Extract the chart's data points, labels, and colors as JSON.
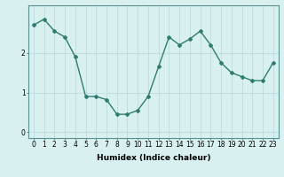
{
  "x": [
    0,
    1,
    2,
    3,
    4,
    5,
    6,
    7,
    8,
    9,
    10,
    11,
    12,
    13,
    14,
    15,
    16,
    17,
    18,
    19,
    20,
    21,
    22,
    23
  ],
  "y": [
    2.7,
    2.85,
    2.55,
    2.4,
    1.9,
    0.9,
    0.9,
    0.82,
    0.45,
    0.45,
    0.55,
    0.9,
    1.65,
    2.4,
    2.2,
    2.35,
    2.55,
    2.2,
    1.75,
    1.5,
    1.4,
    1.3,
    1.3,
    1.75
  ],
  "xlabel": "Humidex (Indice chaleur)",
  "ylabel": "",
  "xlim": [
    -0.5,
    23.5
  ],
  "ylim": [
    -0.15,
    3.2
  ],
  "yticks": [
    0,
    1,
    2
  ],
  "xticks": [
    0,
    1,
    2,
    3,
    4,
    5,
    6,
    7,
    8,
    9,
    10,
    11,
    12,
    13,
    14,
    15,
    16,
    17,
    18,
    19,
    20,
    21,
    22,
    23
  ],
  "line_color": "#2e7d6e",
  "bg_color": "#d9f0f0",
  "grid_color": "#b8d8d8",
  "marker": "D",
  "marker_size": 2.0,
  "line_width": 1.0,
  "label_fontsize": 6.5,
  "tick_fontsize": 5.5
}
